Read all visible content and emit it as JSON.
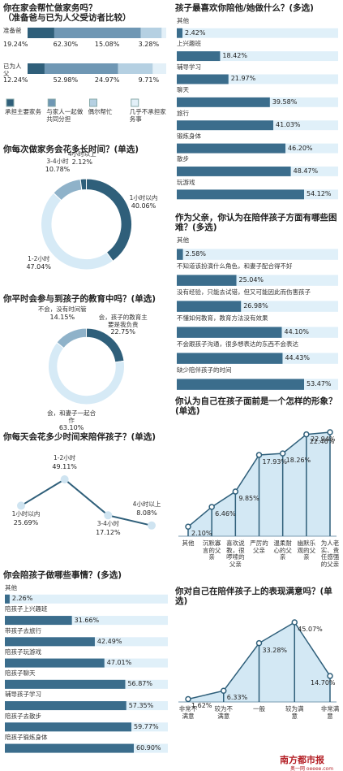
{
  "chart_data": [
    {
      "type": "bar",
      "stacked": true,
      "orientation": "horizontal",
      "title": "你在家会帮忙做家务吗？",
      "subtitle": "（准备爸与已为人父受访者比较）",
      "categories": [
        "准备爸",
        "已为人父"
      ],
      "series": [
        {
          "name": "承担主要家务",
          "color": "#2f5f7a",
          "values": [
            19.24,
            12.24
          ],
          "value_labels": [
            "19.24%",
            "12.24%"
          ]
        },
        {
          "name": "与家人一起做共同分担",
          "color": "#6f97b4",
          "values": [
            62.3,
            52.98
          ],
          "value_labels": [
            "62.30%",
            "52.98%"
          ]
        },
        {
          "name": "偶尔帮忙",
          "color": "#b5d0e2",
          "values": [
            15.08,
            24.97
          ],
          "value_labels": [
            "15.08%",
            "24.97%"
          ]
        },
        {
          "name": "几乎不承担家务事",
          "color": "#e3f0f8",
          "values": [
            3.28,
            9.71
          ],
          "value_labels": [
            "3.28%",
            "9.71%"
          ]
        }
      ],
      "legend": "bottom"
    },
    {
      "type": "pie",
      "donut": true,
      "title": "你每次做家务会花多长时间？(单选)",
      "categories": [
        "1小时以内",
        "1-2小时",
        "3-4小时",
        "4小时以上"
      ],
      "values": [
        40.06,
        47.04,
        10.78,
        2.12
      ],
      "value_labels": [
        "40.06%",
        "47.04%",
        "10.78%",
        "2.12%"
      ],
      "colors": [
        "#2f5f7a",
        "#d6eaf6",
        "#8fb2c9",
        "#2f5f7a"
      ]
    },
    {
      "type": "pie",
      "donut": true,
      "title": "你平时会参与到孩子的教育中吗？(单选)",
      "categories": [
        "会，孩子的教育主要是我负责",
        "会，和妻子一起合作",
        "不会，没有时间管"
      ],
      "values": [
        22.75,
        63.1,
        14.15
      ],
      "value_labels": [
        "22.75%",
        "63.10%",
        "14.15%"
      ],
      "colors": [
        "#2f5f7a",
        "#d6eaf6",
        "#8fb2c9"
      ]
    },
    {
      "type": "line",
      "title": "你每天会花多少时间来陪伴孩子？(单选)",
      "categories": [
        "1小时以内",
        "1-2小时",
        "3-4小时",
        "4小时以上"
      ],
      "values": [
        25.69,
        49.11,
        17.12,
        8.08
      ],
      "value_labels": [
        "25.69%",
        "49.11%",
        "17.12%",
        "8.08%"
      ],
      "color": "#2f5f7a",
      "marker_color": "#cfe4f1"
    },
    {
      "type": "bar",
      "orientation": "horizontal",
      "title": "你会陪孩子做哪些事情？(多选)",
      "categories": [
        "其他",
        "陪孩子上兴趣班",
        "带孩子去旅行",
        "陪孩子玩游戏",
        "陪孩子聊天",
        "辅导孩子学习",
        "陪孩子去散步",
        "陪孩子锻炼身体"
      ],
      "values": [
        2.26,
        31.66,
        42.49,
        47.01,
        56.87,
        57.35,
        59.77,
        60.9
      ],
      "value_labels": [
        "2.26%",
        "31.66%",
        "42.49%",
        "47.01%",
        "56.87%",
        "57.35%",
        "59.77%",
        "60.90%"
      ],
      "color": "#3b6d8c",
      "track": "#e0f0f9"
    },
    {
      "type": "bar",
      "orientation": "horizontal",
      "title": "孩子最喜欢你陪他/她做什么？(多选)",
      "categories": [
        "其他",
        "上兴趣班",
        "辅导学习",
        "聊天",
        "旅行",
        "锻炼身体",
        "散步",
        "玩游戏"
      ],
      "values": [
        2.42,
        18.42,
        21.97,
        39.58,
        41.03,
        46.2,
        48.47,
        54.12
      ],
      "value_labels": [
        "2.42%",
        "18.42%",
        "21.97%",
        "39.58%",
        "41.03%",
        "46.20%",
        "48.47%",
        "54.12%"
      ],
      "color": "#3b6d8c",
      "track": "#e0f0f9"
    },
    {
      "type": "bar",
      "orientation": "horizontal",
      "title": "作为父亲，你认为在陪伴孩子方面有哪些困难？(多选)",
      "categories": [
        "其他",
        "不知道该扮演什么角色，和妻子配合得不好",
        "没有经验，只能去试错，但又可能因此而伤害孩子",
        "不懂如何教育，教育方法没有效果",
        "不会跟孩子沟通，很多想表达的东西不会表达",
        "缺少陪伴孩子的时间"
      ],
      "values": [
        2.58,
        25.04,
        26.98,
        44.1,
        44.43,
        53.47
      ],
      "value_labels": [
        "2.58%",
        "25.04%",
        "26.98%",
        "44.10%",
        "44.43%",
        "53.47%"
      ],
      "color": "#3b6d8c",
      "track": "#e0f0f9"
    },
    {
      "type": "area",
      "title": "你认为自己在孩子面前是一个怎样的形象？(单选)",
      "categories": [
        "其他",
        "沉默寡言的父亲",
        "喜欢说教，很啰嗦的父亲",
        "严厉的父亲",
        "温柔耐心的父亲",
        "幽默乐观的父亲",
        "为人老实、责任感强的父亲"
      ],
      "values": [
        2.1,
        6.46,
        9.85,
        17.93,
        18.26,
        22.46,
        22.94
      ],
      "value_labels": [
        "2.10%",
        "6.46%",
        "9.85%",
        "17.93%",
        "18.26%",
        "22.46%",
        "22.94%"
      ],
      "color": "#2f5f7a",
      "fill": "#d3e8f4"
    },
    {
      "type": "area",
      "title": "你对自己在陪伴孩子上的表现满意吗？(单选)",
      "categories": [
        "非常不满意",
        "较为不满意",
        "一般",
        "较为满意",
        "非常满意"
      ],
      "values": [
        1.62,
        6.33,
        33.28,
        45.07,
        14.7
      ],
      "value_labels": [
        "1.62%",
        "6.33%",
        "33.28%",
        "45.07%",
        "14.70%"
      ],
      "color": "#2f5f7a",
      "fill": "#d3e8f4"
    }
  ],
  "footer": {
    "logo": "南方都市报",
    "site": "奥一网 oeeee.com"
  }
}
